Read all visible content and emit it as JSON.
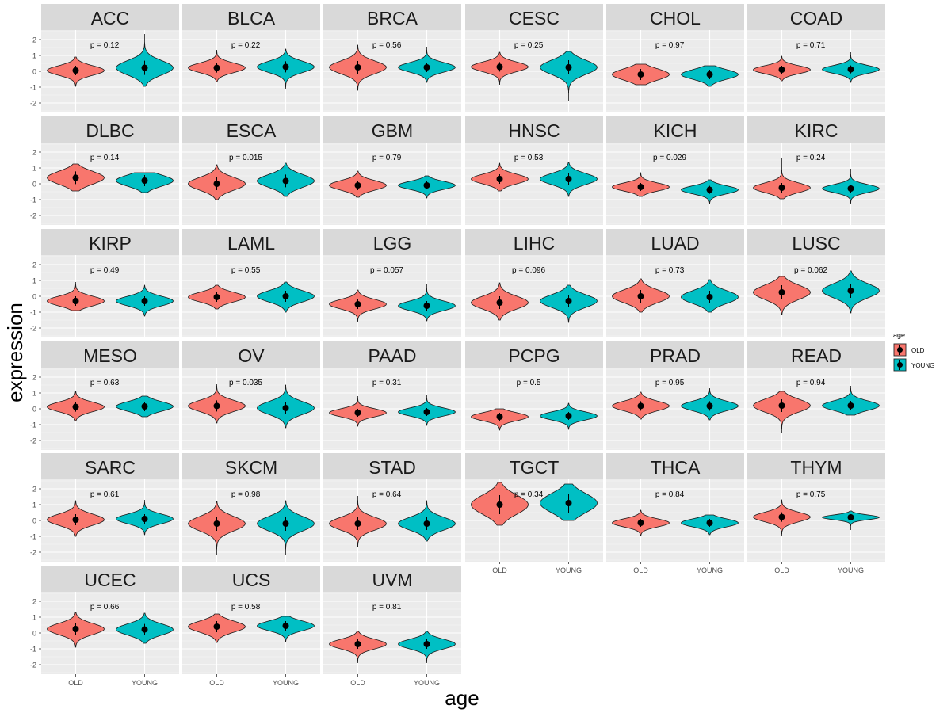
{
  "chart_data": {
    "type": "violin",
    "title": "",
    "xlabel": "age",
    "ylabel": "expression",
    "ylim": [
      -2.6,
      2.6
    ],
    "y_ticks": [
      -2,
      -1,
      0,
      1,
      2
    ],
    "grid": true,
    "legend": {
      "title": "age",
      "placement": "right",
      "entries": [
        {
          "name": "OLD",
          "color": "#F8766D"
        },
        {
          "name": "YOUNG",
          "color": "#00BFC4"
        }
      ]
    },
    "categories": [
      "OLD",
      "YOUNG"
    ],
    "panels": [
      {
        "name": "ACC",
        "p": "p = 0.12",
        "old": {
          "mean": 0.05,
          "sd": 0.3,
          "min": -0.95,
          "max": 0.9
        },
        "young": {
          "mean": 0.22,
          "sd": 0.45,
          "min": -0.95,
          "max": 2.35
        }
      },
      {
        "name": "BLCA",
        "p": "p = 0.22",
        "old": {
          "mean": 0.22,
          "sd": 0.3,
          "min": -0.65,
          "max": 1.35
        },
        "young": {
          "mean": 0.28,
          "sd": 0.35,
          "min": -1.1,
          "max": 1.4
        }
      },
      {
        "name": "BRCA",
        "p": "p = 0.56",
        "old": {
          "mean": 0.25,
          "sd": 0.4,
          "min": -1.2,
          "max": 1.65
        },
        "young": {
          "mean": 0.25,
          "sd": 0.3,
          "min": -0.7,
          "max": 1.55
        }
      },
      {
        "name": "CESC",
        "p": "p = 0.25",
        "old": {
          "mean": 0.28,
          "sd": 0.3,
          "min": -0.85,
          "max": 1.2
        },
        "young": {
          "mean": 0.25,
          "sd": 0.45,
          "min": -1.9,
          "max": 1.25
        }
      },
      {
        "name": "CHOL",
        "p": "p = 0.97",
        "old": {
          "mean": -0.2,
          "sd": 0.35,
          "min": -0.85,
          "max": 0.45
        },
        "young": {
          "mean": -0.2,
          "sd": 0.3,
          "min": -0.95,
          "max": 0.35
        }
      },
      {
        "name": "COAD",
        "p": "p = 0.71",
        "old": {
          "mean": 0.1,
          "sd": 0.25,
          "min": -0.6,
          "max": 0.95
        },
        "young": {
          "mean": 0.12,
          "sd": 0.25,
          "min": -0.7,
          "max": 1.2
        }
      },
      {
        "name": "DLBC",
        "p": "p = 0.14",
        "old": {
          "mean": 0.38,
          "sd": 0.4,
          "min": -0.45,
          "max": 1.25
        },
        "young": {
          "mean": 0.2,
          "sd": 0.35,
          "min": -0.55,
          "max": 0.7
        }
      },
      {
        "name": "ESCA",
        "p": "p = 0.015",
        "old": {
          "mean": 0.0,
          "sd": 0.4,
          "min": -1.0,
          "max": 1.2
        },
        "young": {
          "mean": 0.18,
          "sd": 0.4,
          "min": -0.8,
          "max": 1.3
        }
      },
      {
        "name": "GBM",
        "p": "p = 0.79",
        "old": {
          "mean": -0.1,
          "sd": 0.3,
          "min": -0.85,
          "max": 0.8
        },
        "young": {
          "mean": -0.1,
          "sd": 0.25,
          "min": -0.9,
          "max": 0.5
        }
      },
      {
        "name": "HNSC",
        "p": "p = 0.53",
        "old": {
          "mean": 0.3,
          "sd": 0.3,
          "min": -0.45,
          "max": 1.3
        },
        "young": {
          "mean": 0.3,
          "sd": 0.35,
          "min": -0.8,
          "max": 1.35
        }
      },
      {
        "name": "KICH",
        "p": "p = 0.029",
        "old": {
          "mean": -0.2,
          "sd": 0.25,
          "min": -0.8,
          "max": 0.7
        },
        "young": {
          "mean": -0.38,
          "sd": 0.25,
          "min": -1.25,
          "max": 0.25
        }
      },
      {
        "name": "KIRC",
        "p": "p = 0.24",
        "old": {
          "mean": -0.25,
          "sd": 0.3,
          "min": -0.95,
          "max": 1.6
        },
        "young": {
          "mean": -0.3,
          "sd": 0.25,
          "min": -1.25,
          "max": 0.95
        }
      },
      {
        "name": "KIRP",
        "p": "p = 0.49",
        "old": {
          "mean": -0.3,
          "sd": 0.3,
          "min": -0.9,
          "max": 0.9
        },
        "young": {
          "mean": -0.3,
          "sd": 0.3,
          "min": -1.25,
          "max": 0.7
        }
      },
      {
        "name": "LAML",
        "p": "p = 0.55",
        "old": {
          "mean": -0.05,
          "sd": 0.3,
          "min": -0.8,
          "max": 0.7
        },
        "young": {
          "mean": 0.0,
          "sd": 0.35,
          "min": -1.0,
          "max": 0.9
        }
      },
      {
        "name": "LGG",
        "p": "p = 0.057",
        "old": {
          "mean": -0.5,
          "sd": 0.3,
          "min": -1.6,
          "max": 0.4
        },
        "young": {
          "mean": -0.6,
          "sd": 0.3,
          "min": -1.55,
          "max": 0.75
        }
      },
      {
        "name": "LIHC",
        "p": "p = 0.096",
        "old": {
          "mean": -0.4,
          "sd": 0.4,
          "min": -1.5,
          "max": 0.85
        },
        "young": {
          "mean": -0.3,
          "sd": 0.4,
          "min": -1.65,
          "max": 0.7
        }
      },
      {
        "name": "LUAD",
        "p": "p = 0.73",
        "old": {
          "mean": 0.0,
          "sd": 0.4,
          "min": -1.0,
          "max": 1.1
        },
        "young": {
          "mean": -0.05,
          "sd": 0.4,
          "min": -1.0,
          "max": 1.05
        }
      },
      {
        "name": "LUSC",
        "p": "p = 0.062",
        "old": {
          "mean": 0.25,
          "sd": 0.45,
          "min": -1.15,
          "max": 1.25
        },
        "young": {
          "mean": 0.35,
          "sd": 0.45,
          "min": -1.05,
          "max": 1.6
        }
      },
      {
        "name": "MESO",
        "p": "p = 0.63",
        "old": {
          "mean": 0.12,
          "sd": 0.3,
          "min": -0.75,
          "max": 1.1
        },
        "young": {
          "mean": 0.15,
          "sd": 0.3,
          "min": -0.5,
          "max": 0.8
        }
      },
      {
        "name": "OV",
        "p": "p = 0.035",
        "old": {
          "mean": 0.18,
          "sd": 0.35,
          "min": -0.9,
          "max": 1.55
        },
        "young": {
          "mean": 0.05,
          "sd": 0.4,
          "min": -1.2,
          "max": 1.5
        }
      },
      {
        "name": "PAAD",
        "p": "p = 0.31",
        "old": {
          "mean": -0.25,
          "sd": 0.25,
          "min": -1.1,
          "max": 0.8
        },
        "young": {
          "mean": -0.2,
          "sd": 0.25,
          "min": -1.05,
          "max": 0.85
        }
      },
      {
        "name": "PCPG",
        "p": "p = 0.5",
        "old": {
          "mean": -0.5,
          "sd": 0.25,
          "min": -1.35,
          "max": 0.0
        },
        "young": {
          "mean": -0.45,
          "sd": 0.25,
          "min": -1.3,
          "max": 0.35
        }
      },
      {
        "name": "PRAD",
        "p": "p = 0.95",
        "old": {
          "mean": 0.18,
          "sd": 0.3,
          "min": -0.65,
          "max": 1.05
        },
        "young": {
          "mean": 0.18,
          "sd": 0.3,
          "min": -0.7,
          "max": 1.3
        }
      },
      {
        "name": "READ",
        "p": "p = 0.94",
        "old": {
          "mean": 0.2,
          "sd": 0.4,
          "min": -1.55,
          "max": 1.1
        },
        "young": {
          "mean": 0.2,
          "sd": 0.3,
          "min": -0.4,
          "max": 1.45
        }
      },
      {
        "name": "SARC",
        "p": "p = 0.61",
        "old": {
          "mean": 0.05,
          "sd": 0.35,
          "min": -1.0,
          "max": 1.25
        },
        "young": {
          "mean": 0.1,
          "sd": 0.3,
          "min": -0.9,
          "max": 1.3
        }
      },
      {
        "name": "SKCM",
        "p": "p = 0.98",
        "old": {
          "mean": -0.2,
          "sd": 0.45,
          "min": -2.2,
          "max": 1.2
        },
        "young": {
          "mean": -0.2,
          "sd": 0.45,
          "min": -2.2,
          "max": 1.25
        }
      },
      {
        "name": "STAD",
        "p": "p = 0.64",
        "old": {
          "mean": -0.2,
          "sd": 0.4,
          "min": -1.65,
          "max": 1.55
        },
        "young": {
          "mean": -0.2,
          "sd": 0.4,
          "min": -1.3,
          "max": 1.25
        }
      },
      {
        "name": "TGCT",
        "p": "p = 0.34",
        "old": {
          "mean": 1.0,
          "sd": 0.6,
          "min": -0.3,
          "max": 2.4
        },
        "young": {
          "mean": 1.1,
          "sd": 0.6,
          "min": 0.0,
          "max": 2.3
        }
      },
      {
        "name": "THCA",
        "p": "p = 0.84",
        "old": {
          "mean": -0.15,
          "sd": 0.25,
          "min": -0.95,
          "max": 0.65
        },
        "young": {
          "mean": -0.15,
          "sd": 0.25,
          "min": -0.9,
          "max": 0.35
        }
      },
      {
        "name": "THYM",
        "p": "p = 0.75",
        "old": {
          "mean": 0.22,
          "sd": 0.3,
          "min": -0.95,
          "max": 1.3
        },
        "young": {
          "mean": 0.2,
          "sd": 0.15,
          "min": -0.6,
          "max": 0.6
        }
      },
      {
        "name": "UCEC",
        "p": "p = 0.66",
        "old": {
          "mean": 0.25,
          "sd": 0.35,
          "min": -0.9,
          "max": 1.3
        },
        "young": {
          "mean": 0.22,
          "sd": 0.35,
          "min": -0.65,
          "max": 1.25
        }
      },
      {
        "name": "UCS",
        "p": "p = 0.58",
        "old": {
          "mean": 0.4,
          "sd": 0.35,
          "min": -0.6,
          "max": 1.2
        },
        "young": {
          "mean": 0.45,
          "sd": 0.3,
          "min": -0.55,
          "max": 1.05
        }
      },
      {
        "name": "UVM",
        "p": "p = 0.81",
        "old": {
          "mean": -0.7,
          "sd": 0.3,
          "min": -1.9,
          "max": 0.1
        },
        "young": {
          "mean": -0.7,
          "sd": 0.3,
          "min": -1.9,
          "max": 0.1
        }
      }
    ]
  }
}
